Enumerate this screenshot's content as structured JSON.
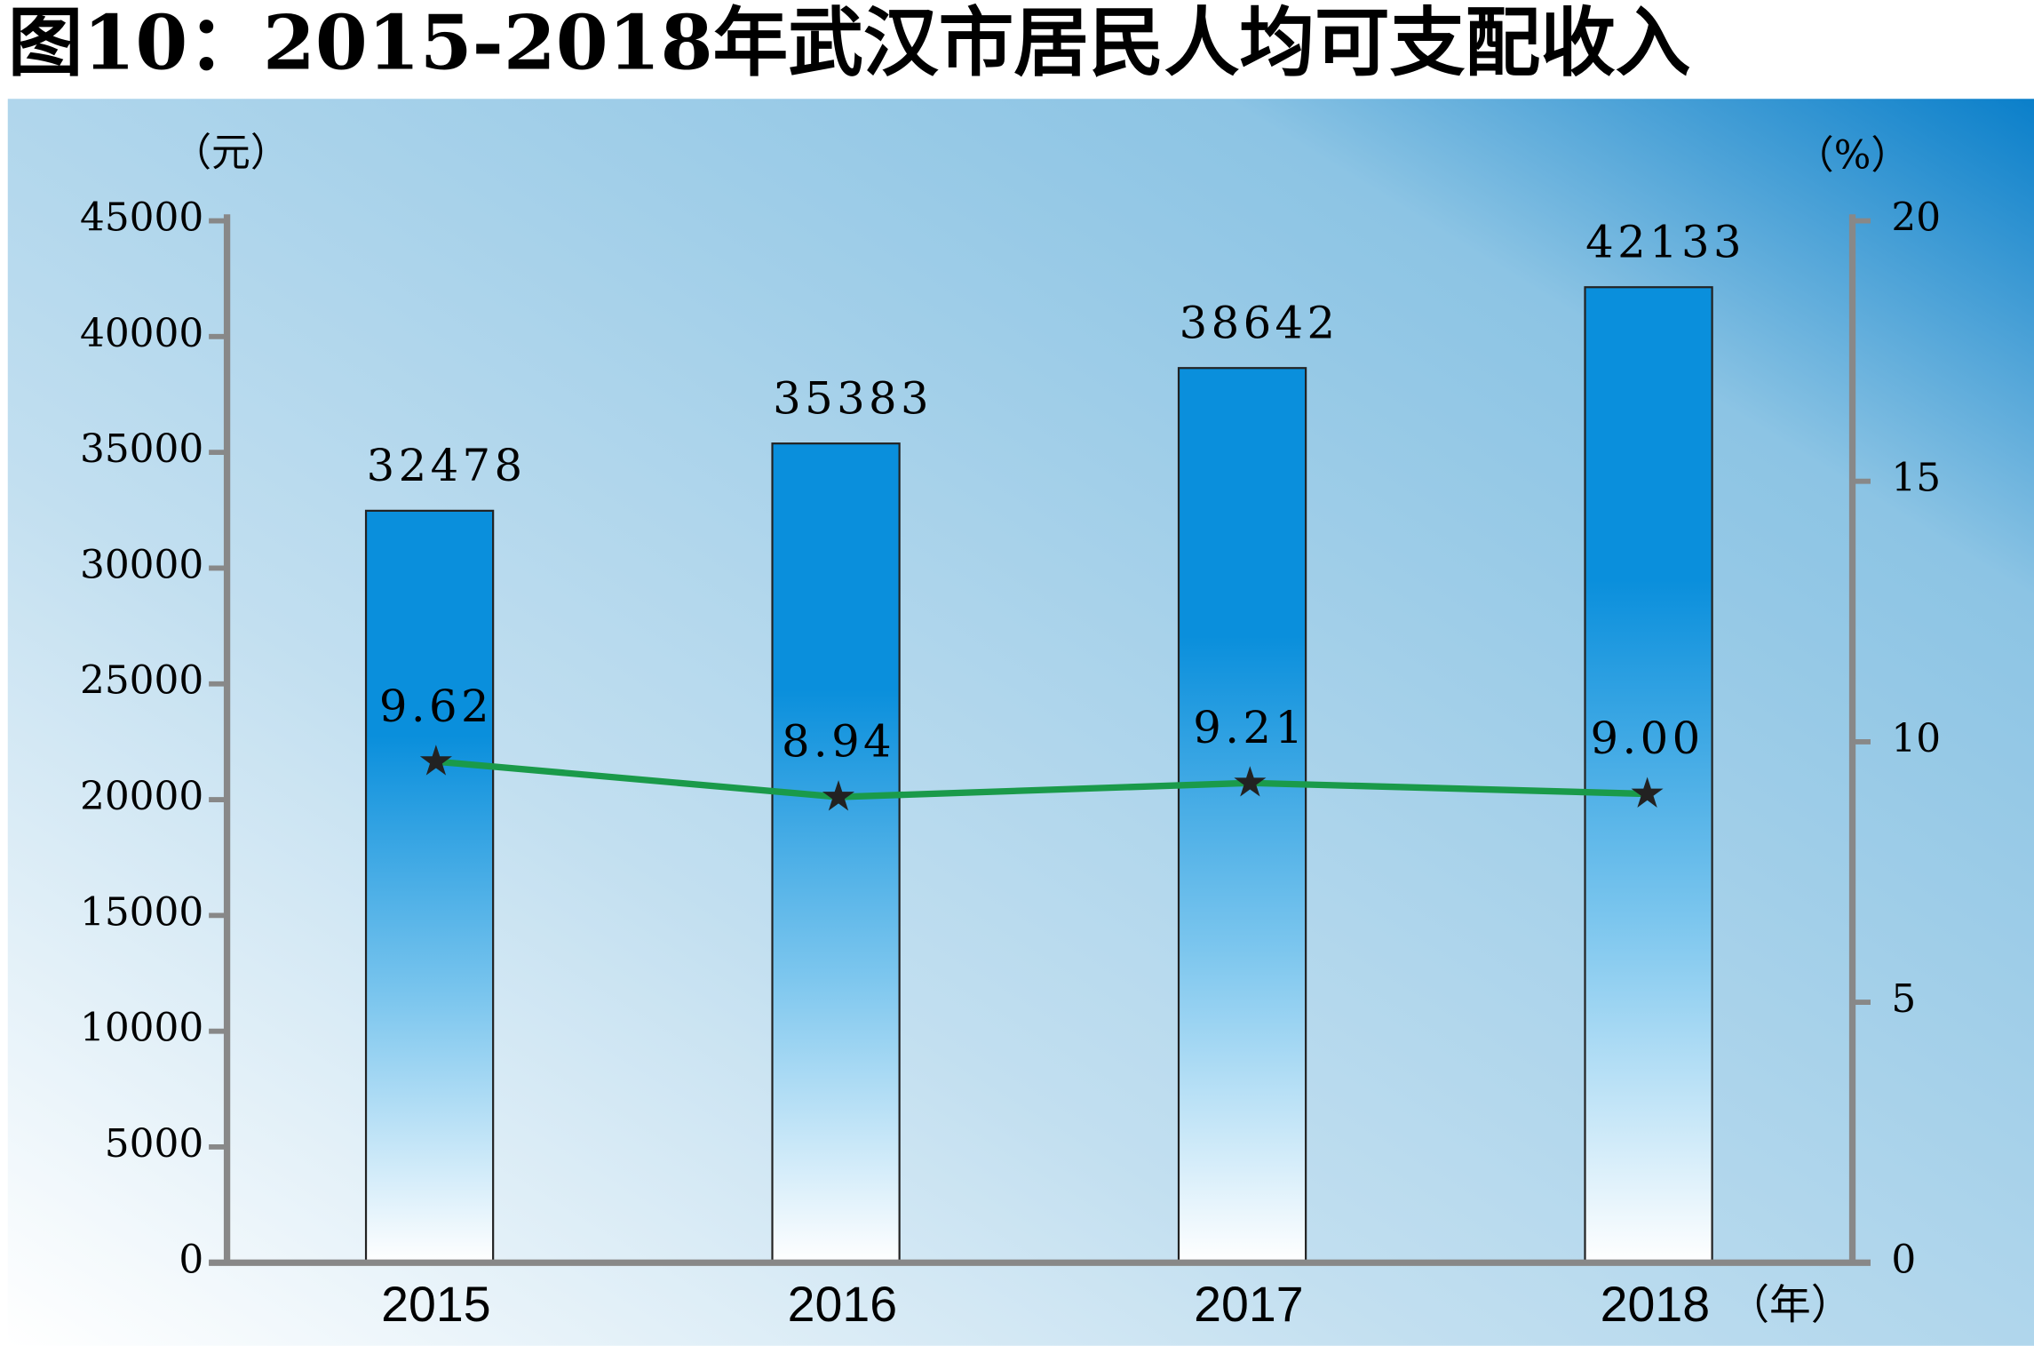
{
  "chart_data": {
    "type": "bar",
    "title": "图10：2015-2018年武汉市居民人均可支配收入",
    "y_label": "（元）",
    "y2_label": "（%）",
    "x_label": "（年）",
    "categories": [
      "2015",
      "2016",
      "2017",
      "2018"
    ],
    "series": [
      {
        "type": "bar",
        "color": "#0091e0",
        "values": [
          32478,
          35383,
          38642,
          42133
        ]
      },
      {
        "type": "line",
        "color": "#1a9a4a",
        "axis": "y2",
        "values": [
          9.62,
          8.94,
          9.21,
          9.0
        ],
        "value_labels": [
          "9.62",
          "8.94",
          "9.21",
          "9.00"
        ]
      }
    ],
    "ylim": [
      0,
      45000
    ],
    "yticks": [
      0,
      5000,
      10000,
      15000,
      20000,
      25000,
      30000,
      35000,
      40000,
      45000
    ],
    "y2lim": [
      0,
      20
    ],
    "y2ticks": [
      0,
      5,
      10,
      15,
      20
    ]
  }
}
